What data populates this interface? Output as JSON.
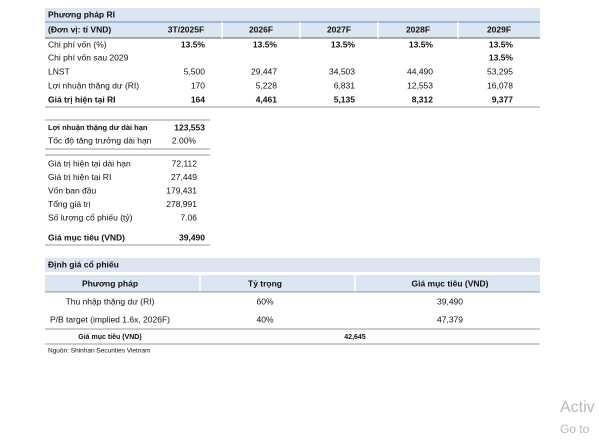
{
  "ri_table": {
    "title": "Phương pháp RI",
    "unit": "(Đơn vị: tỉ VND)",
    "columns": [
      "3T/2025F",
      "2026F",
      "2027F",
      "2028F",
      "2029F"
    ],
    "rows": [
      {
        "label": "Chi phí vốn (%)",
        "values": [
          "13.5%",
          "13.5%",
          "13.5%",
          "13.5%",
          "13.5%"
        ]
      },
      {
        "label": "Chi phí vốn sau 2029",
        "values": [
          null,
          null,
          null,
          null,
          "13.5%"
        ]
      },
      {
        "label": "LNST",
        "values": [
          "5,500",
          "29,447",
          "34,503",
          "44,490",
          "53,295"
        ]
      },
      {
        "label": "Lợi nhuận thặng dư (RI)",
        "values": [
          "170",
          "5,228",
          "6,831",
          "12,553",
          "16,078"
        ]
      },
      {
        "label": "Giá trị hiện tại RI",
        "values": [
          "164",
          "4,461",
          "5,135",
          "8,312",
          "9,377"
        ]
      }
    ]
  },
  "long_term": {
    "rows": [
      {
        "label": "Lợi nhuận thặng dư dài hạn",
        "value": "123,553"
      },
      {
        "label": "Tốc độ tăng trưởng dài hạn",
        "value": "2.00%"
      }
    ]
  },
  "valuation_inputs": {
    "rows": [
      {
        "label": "Giá trị hiện tại dài hạn",
        "value": "72,112"
      },
      {
        "label": "Giá trị hiện tại RI",
        "value": "27,449"
      },
      {
        "label": "Vốn ban đầu",
        "value": "179,431"
      },
      {
        "label": "Tổng giá trị",
        "value": "278,991"
      },
      {
        "label": "Số lượng cổ phiếu (tỷ)",
        "value": "7.06"
      },
      {
        "label": "Giá mục tiêu (VND)",
        "value": "39,490"
      }
    ]
  },
  "stock_valuation": {
    "title": "Định giá cổ phiếu",
    "headers": [
      "Phương pháp",
      "Tỷ trọng",
      "Giá mục tiêu (VND)"
    ],
    "rows": [
      [
        "Thu nhập thặng dư (RI)",
        "60%",
        "39,490"
      ],
      [
        "P/B target (implied 1.6x, 2026F)",
        "40%",
        "47,379"
      ]
    ],
    "total": {
      "label": "Giá mục tiêu (VND)",
      "value": "42,645"
    }
  },
  "source": "Nguồn: Shinhan Securities Vietnam",
  "watermark": [
    "Activ",
    "Go to"
  ]
}
